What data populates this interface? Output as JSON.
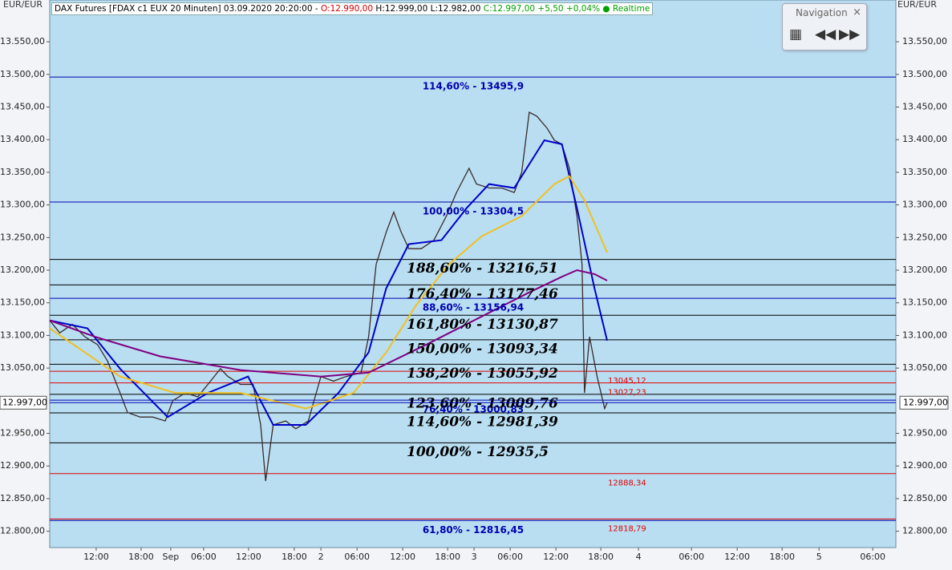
{
  "chart_data": {
    "type": "line",
    "header": [
      {
        "text": "DAX Futures [FDAX c1 EUX 20 Minuten] 03.09.2020 20:20:00 - ",
        "color": "#000000"
      },
      {
        "text": "O:12.990,00",
        "color": "#d00000"
      },
      {
        "text": " H:12.999,00 L:12.982,00 ",
        "color": "#000000"
      },
      {
        "text": "C:12.997,00 +5,50 +0,04% ● Realtime",
        "color": "#00a000"
      }
    ],
    "y_unit": "EUR/EUR",
    "navigation": "Navigation",
    "xlim": [
      0,
      337
    ],
    "xticks": [
      {
        "value": 18.5,
        "label": "12:00"
      },
      {
        "value": 36.4,
        "label": "18:00"
      },
      {
        "value": 48.2,
        "label": "Sep"
      },
      {
        "value": 61.3,
        "label": "06:00"
      },
      {
        "value": 79.2,
        "label": "12:00"
      },
      {
        "value": 97.4,
        "label": "18:00"
      },
      {
        "value": 108,
        "label": "2"
      },
      {
        "value": 122.4,
        "label": "06:00"
      },
      {
        "value": 140.6,
        "label": "12:00"
      },
      {
        "value": 158.5,
        "label": "18:00"
      },
      {
        "value": 169,
        "label": "3"
      },
      {
        "value": 183.4,
        "label": "06:00"
      },
      {
        "value": 201.6,
        "label": "12:00"
      },
      {
        "value": 219.5,
        "label": "18:00"
      },
      {
        "value": 234.5,
        "label": "4"
      },
      {
        "value": 255.6,
        "label": "06:00"
      },
      {
        "value": 273.8,
        "label": "12:00"
      },
      {
        "value": 291.7,
        "label": "18:00"
      },
      {
        "value": 306.4,
        "label": "5"
      },
      {
        "value": 327.8,
        "label": "06:00"
      }
    ],
    "ylim": [
      12775,
      13614
    ],
    "yticks": [
      {
        "value": 12800,
        "label": "12.800,00"
      },
      {
        "value": 12850,
        "label": "12.850,00"
      },
      {
        "value": 12900,
        "label": "12.900,00"
      },
      {
        "value": 12950,
        "label": "12.950,00"
      },
      {
        "value": 13050,
        "label": "13.050,00"
      },
      {
        "value": 13100,
        "label": "13.100,00"
      },
      {
        "value": 13150,
        "label": "13.150,00"
      },
      {
        "value": 13200,
        "label": "13.200,00"
      },
      {
        "value": 13250,
        "label": "13.250,00"
      },
      {
        "value": 13300,
        "label": "13.300,00"
      },
      {
        "value": 13350,
        "label": "13.350,00"
      },
      {
        "value": 13400,
        "label": "13.400,00"
      },
      {
        "value": 13450,
        "label": "13.450,00"
      },
      {
        "value": 13500,
        "label": "13.500,00"
      },
      {
        "value": 13550,
        "label": "13.550,00"
      }
    ],
    "last": {
      "value": 12997,
      "label": "12.997,00"
    },
    "levels": [
      {
        "value": 13495.9,
        "label": "114,60% - 13495,9",
        "color": "#0000b0"
      },
      {
        "value": 13304.5,
        "label": "100,00% - 13304,5",
        "color": "#0000b0"
      },
      {
        "value": 13156.94,
        "label": "88,60% - 13156,94",
        "color": "#0000b0"
      },
      {
        "value": 13000.83,
        "label": "76,40% - 13000,83",
        "color": "#0000b0"
      },
      {
        "value": 12816.45,
        "label": "61,80% - 12816,45",
        "color": "#0000b0"
      },
      {
        "value": 13216.51,
        "label": "188,60% - 13216,51",
        "color": "#000000"
      },
      {
        "value": 13177.46,
        "label": "176,40% - 13177,46",
        "color": "#000000"
      },
      {
        "value": 13130.87,
        "label": "161,80% - 13130,87",
        "color": "#000000"
      },
      {
        "value": 13093.34,
        "label": "150,00% - 13093,34",
        "color": "#000000"
      },
      {
        "value": 13055.92,
        "label": "138,20% - 13055,92",
        "color": "#000000"
      },
      {
        "value": 13009.76,
        "label": "123,60% - 13009,76",
        "color": "#000000"
      },
      {
        "value": 12981.39,
        "label": "114,60% - 12981,39",
        "color": "#000000"
      },
      {
        "value": 12935.5,
        "label": "100,00% - 12935,5",
        "color": "#000000"
      },
      {
        "value": 13045.12,
        "label": "13045,12",
        "color": "#e00000"
      },
      {
        "value": 13027.23,
        "label": "13027,23",
        "color": "#e00000"
      },
      {
        "value": 12888.34,
        "label": "12888,34",
        "color": "#e00000"
      },
      {
        "value": 12818.79,
        "label": "12818,79",
        "color": "#e00000"
      }
    ],
    "series": [
      {
        "color": "#3a2a2a",
        "x": [
          0,
          4,
          9,
          14,
          19,
          23,
          28,
          31,
          36,
          41,
          46,
          49,
          54,
          59,
          63,
          68,
          71,
          76,
          81,
          84,
          86,
          89,
          94,
          98,
          103,
          108,
          113,
          118,
          124,
          127,
          130,
          134,
          137,
          140,
          143,
          148,
          153,
          158,
          162,
          167,
          170,
          175,
          180,
          185,
          188,
          191,
          194,
          198,
          201,
          204,
          207,
          210,
          212,
          213,
          215,
          218,
          221,
          222
        ],
        "values": [
          13123,
          13104,
          13117,
          13098,
          13086,
          13061,
          13012,
          12982,
          12975,
          12975,
          12969,
          13000,
          13012,
          13006,
          13025,
          13049,
          13037,
          13025,
          13025,
          12963,
          12877,
          12963,
          12969,
          12957,
          12969,
          13037,
          13030,
          13037,
          13043,
          13098,
          13209,
          13258,
          13289,
          13258,
          13233,
          13233,
          13246,
          13283,
          13319,
          13356,
          13332,
          13326,
          13326,
          13319,
          13350,
          13442,
          13436,
          13418,
          13399,
          13393,
          13356,
          13283,
          13209,
          13012,
          13098,
          13037,
          12988,
          12997
        ]
      },
      {
        "color": "#0000c8",
        "x": [
          0,
          15,
          28,
          47,
          63,
          79,
          89,
          102,
          115,
          127,
          134,
          143,
          156,
          166,
          175,
          185,
          197,
          204,
          210,
          217,
          222
        ],
        "values": [
          13123,
          13111,
          13049,
          12975,
          13012,
          13037,
          12963,
          12963,
          13012,
          13074,
          13172,
          13240,
          13246,
          13295,
          13332,
          13326,
          13399,
          13393,
          13295,
          13172,
          13092
        ]
      },
      {
        "color": "#f0c020",
        "x": [
          0,
          28,
          50,
          76,
          102,
          121,
          134,
          146,
          159,
          172,
          188,
          201,
          207,
          213,
          222
        ],
        "values": [
          13111,
          13037,
          13012,
          13012,
          12988,
          13012,
          13074,
          13147,
          13209,
          13252,
          13283,
          13332,
          13344,
          13307,
          13227
        ]
      },
      {
        "color": "#800080",
        "x": [
          0,
          18,
          44,
          76,
          108,
          127,
          150,
          172,
          191,
          204,
          210,
          217,
          222
        ],
        "values": [
          13123,
          13098,
          13068,
          13047,
          13037,
          13043,
          13086,
          13129,
          13166,
          13190,
          13200,
          13194,
          13184
        ]
      }
    ]
  }
}
